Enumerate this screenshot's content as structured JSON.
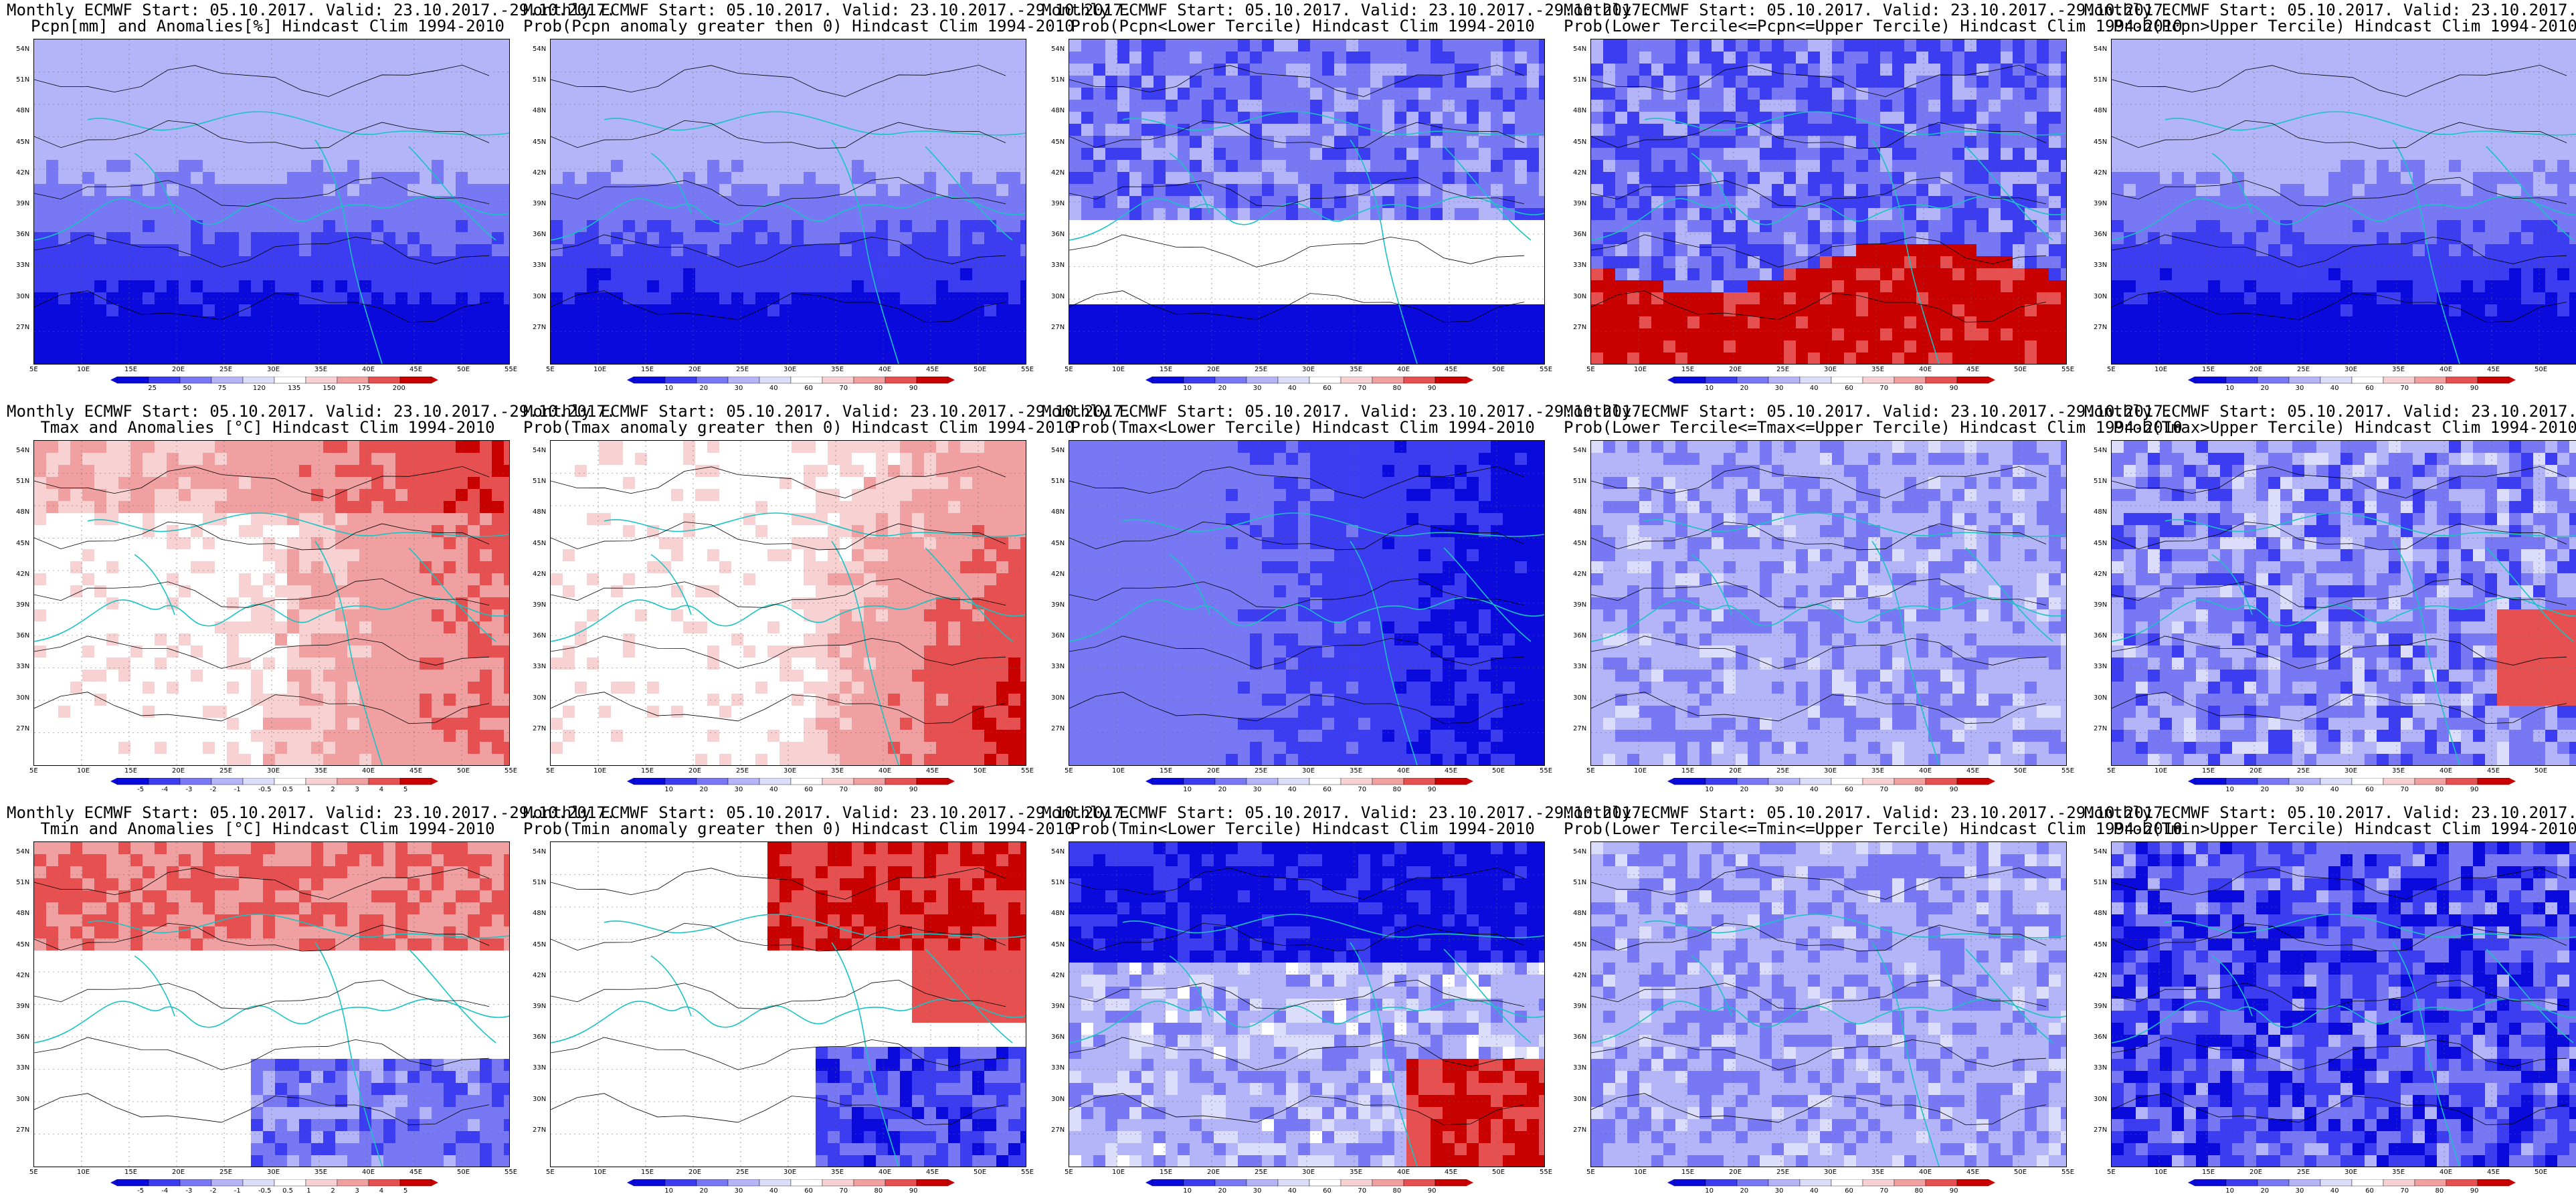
{
  "header": "Monthly ECMWF Start: 05.10.2017. Valid: 23.10.2017.-29.10.2017.",
  "latitudes": [
    "54N",
    "51N",
    "48N",
    "45N",
    "42N",
    "39N",
    "36N",
    "33N",
    "30N",
    "27N"
  ],
  "longitudes": [
    "5E",
    "10E",
    "15E",
    "20E",
    "25E",
    "30E",
    "35E",
    "40E",
    "45E",
    "50E",
    "55E"
  ],
  "colors": {
    "deep_blue": "#0a0adc",
    "blue": "#3c3cf0",
    "mid_blue": "#7878f5",
    "light_blue": "#b4b4f8",
    "pale_blue": "#dcdcfb",
    "white": "#ffffff",
    "pale_red": "#f8d2d2",
    "light_red": "#f0a0a0",
    "red": "#e65050",
    "deep_red": "#c80000",
    "contour": "#000000",
    "coast": "#19c3c3"
  },
  "rows": [
    {
      "variable": "precipitation",
      "panels": [
        {
          "title": "Pcpn[mm] and Anomalies[%] Hindcast Clim 1994-2010",
          "fill": "blue_south",
          "colorbar": [
            "25",
            "50",
            "75",
            "120",
            "135",
            "150",
            "175",
            "200"
          ]
        },
        {
          "title": "Prob(Pcpn anomaly greater then 0) Hindcast Clim 1994-2010",
          "fill": "blue_south",
          "colorbar": [
            "10",
            "20",
            "30",
            "40",
            "60",
            "70",
            "80",
            "90"
          ]
        },
        {
          "title": "Prob(Pcpn<Lower Tercile) Hindcast Clim 1994-2010",
          "fill": "blue_white",
          "colorbar": [
            "10",
            "20",
            "30",
            "40",
            "60",
            "70",
            "80",
            "90"
          ]
        },
        {
          "title": "Prob(Lower Tercile<=Pcpn<=Upper Tercile) Hindcast Clim 1994-2010",
          "fill": "blue_red_south",
          "colorbar": [
            "10",
            "20",
            "30",
            "40",
            "60",
            "70",
            "80",
            "90"
          ]
        },
        {
          "title": "Prob(Pcpn>Upper Tercile) Hindcast Clim 1994-2010",
          "fill": "blue_south",
          "colorbar": [
            "10",
            "20",
            "30",
            "40",
            "60",
            "70",
            "80",
            "90"
          ]
        }
      ]
    },
    {
      "variable": "tmax",
      "panels": [
        {
          "title": "Tmax and Anomalies [°C] Hindcast Clim 1994-2010",
          "fill": "red_east",
          "colorbar": [
            "-5",
            "-4",
            "-3",
            "-2",
            "-1",
            "-0.5",
            "0.5",
            "1",
            "2",
            "3",
            "4",
            "5"
          ]
        },
        {
          "title": "Prob(Tmax anomaly greater then 0) Hindcast Clim 1994-2010",
          "fill": "red_east_strong",
          "colorbar": [
            "10",
            "20",
            "30",
            "40",
            "60",
            "70",
            "80",
            "90"
          ]
        },
        {
          "title": "Prob(Tmax<Lower Tercile) Hindcast Clim 1994-2010",
          "fill": "blue_heavy",
          "colorbar": [
            "10",
            "20",
            "30",
            "40",
            "60",
            "70",
            "80",
            "90"
          ]
        },
        {
          "title": "Prob(Lower Tercile<=Tmax<=Upper Tercile) Hindcast Clim 1994-2010",
          "fill": "blue_mixed",
          "colorbar": [
            "10",
            "20",
            "30",
            "40",
            "60",
            "70",
            "80",
            "90"
          ]
        },
        {
          "title": "Prob(Tmax>Upper Tercile) Hindcast Clim 1994-2010",
          "fill": "blue_mixed_red",
          "colorbar": [
            "10",
            "20",
            "30",
            "40",
            "60",
            "70",
            "80",
            "90"
          ]
        }
      ]
    },
    {
      "variable": "tmin",
      "panels": [
        {
          "title": "Tmin and Anomalies [°C] Hindcast Clim 1994-2010",
          "fill": "red_north",
          "colorbar": [
            "-5",
            "-4",
            "-3",
            "-2",
            "-1",
            "-0.5",
            "0.5",
            "1",
            "2",
            "3",
            "4",
            "5"
          ]
        },
        {
          "title": "Prob(Tmin anomaly greater then 0) Hindcast Clim 1994-2010",
          "fill": "red_north_strong",
          "colorbar": [
            "10",
            "20",
            "30",
            "40",
            "60",
            "70",
            "80",
            "90"
          ]
        },
        {
          "title": "Prob(Tmin<Lower Tercile) Hindcast Clim 1994-2010",
          "fill": "blue_north_red_se",
          "colorbar": [
            "10",
            "20",
            "30",
            "40",
            "60",
            "70",
            "80",
            "90"
          ]
        },
        {
          "title": "Prob(Lower Tercile<=Tmin<=Upper Tercile) Hindcast Clim 1994-2010",
          "fill": "blue_mixed",
          "colorbar": [
            "10",
            "20",
            "30",
            "40",
            "60",
            "70",
            "80",
            "90"
          ]
        },
        {
          "title": "Prob(Tmin>Upper Tercile) Hindcast Clim 1994-2010",
          "fill": "blue_heavy_mixed",
          "colorbar": [
            "10",
            "20",
            "30",
            "40",
            "60",
            "70",
            "80",
            "90"
          ]
        }
      ]
    }
  ]
}
